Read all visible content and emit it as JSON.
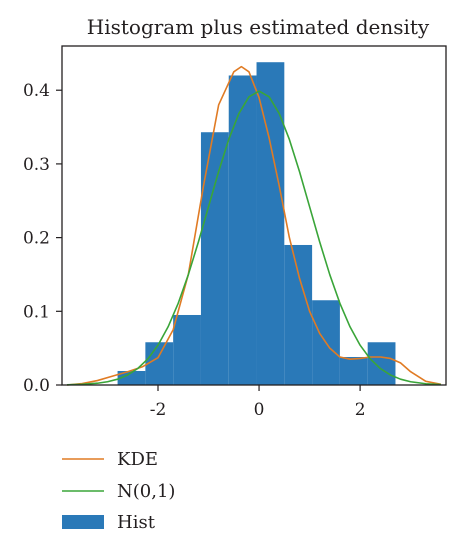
{
  "chart_data": {
    "type": "bar",
    "title": "Histogram plus estimated density",
    "xlabel": "",
    "ylabel": "",
    "xlim": [
      -3.9,
      3.7
    ],
    "ylim": [
      0,
      0.46
    ],
    "x_ticks": [
      -2,
      0,
      2
    ],
    "x_tick_labels": [
      "-2",
      "0",
      "2"
    ],
    "y_ticks": [
      0.0,
      0.1,
      0.2,
      0.3,
      0.4
    ],
    "y_tick_labels": [
      "0.0",
      "0.1",
      "0.2",
      "0.3",
      "0.4"
    ],
    "grid": false,
    "legend_position": "below",
    "colors": {
      "hist": "#2a79b8",
      "kde": "#e07b24",
      "normal": "#3aa539",
      "axis": "#231f20"
    },
    "histogram": {
      "name": "Hist",
      "bin_edges": [
        -2.8,
        -2.25,
        -1.7,
        -1.15,
        -0.6,
        -0.05,
        0.5,
        1.05,
        1.6,
        2.15,
        2.7
      ],
      "values": [
        0.019,
        0.058,
        0.095,
        0.343,
        0.42,
        0.438,
        0.19,
        0.115,
        0.038,
        0.058
      ]
    },
    "series": [
      {
        "name": "KDE",
        "x": [
          -3.8,
          -3.5,
          -3.2,
          -2.9,
          -2.6,
          -2.3,
          -2.0,
          -1.7,
          -1.4,
          -1.1,
          -0.8,
          -0.5,
          -0.35,
          -0.2,
          0.0,
          0.2,
          0.4,
          0.6,
          0.8,
          1.0,
          1.2,
          1.4,
          1.6,
          1.8,
          2.0,
          2.2,
          2.4,
          2.6,
          2.8,
          3.0,
          3.3,
          3.6
        ],
        "values": [
          0.0,
          0.002,
          0.006,
          0.012,
          0.018,
          0.025,
          0.037,
          0.075,
          0.15,
          0.27,
          0.38,
          0.425,
          0.432,
          0.425,
          0.39,
          0.335,
          0.27,
          0.2,
          0.145,
          0.1,
          0.07,
          0.05,
          0.038,
          0.035,
          0.036,
          0.038,
          0.038,
          0.036,
          0.03,
          0.018,
          0.005,
          0.001
        ]
      },
      {
        "name": "N(0,1)",
        "x": [
          -3.8,
          -3.5,
          -3.2,
          -3.0,
          -2.8,
          -2.6,
          -2.4,
          -2.2,
          -2.0,
          -1.8,
          -1.6,
          -1.4,
          -1.2,
          -1.0,
          -0.8,
          -0.6,
          -0.4,
          -0.2,
          0.0,
          0.2,
          0.4,
          0.6,
          0.8,
          1.0,
          1.2,
          1.4,
          1.6,
          1.8,
          2.0,
          2.2,
          2.4,
          2.6,
          2.8,
          3.0,
          3.3,
          3.6
        ],
        "values": [
          0.0003,
          0.0009,
          0.0024,
          0.0044,
          0.0079,
          0.0136,
          0.0224,
          0.0355,
          0.054,
          0.079,
          0.1109,
          0.1497,
          0.1942,
          0.242,
          0.2897,
          0.3332,
          0.3683,
          0.391,
          0.3989,
          0.391,
          0.3683,
          0.3332,
          0.2897,
          0.242,
          0.1942,
          0.1497,
          0.1109,
          0.079,
          0.054,
          0.0355,
          0.0224,
          0.0136,
          0.0079,
          0.0044,
          0.0017,
          0.0006
        ]
      }
    ],
    "legend": [
      {
        "label": "KDE",
        "kind": "line",
        "color": "#e07b24"
      },
      {
        "label": "N(0,1)",
        "kind": "line",
        "color": "#3aa539"
      },
      {
        "label": "Hist",
        "kind": "patch",
        "color": "#2a79b8"
      }
    ]
  }
}
